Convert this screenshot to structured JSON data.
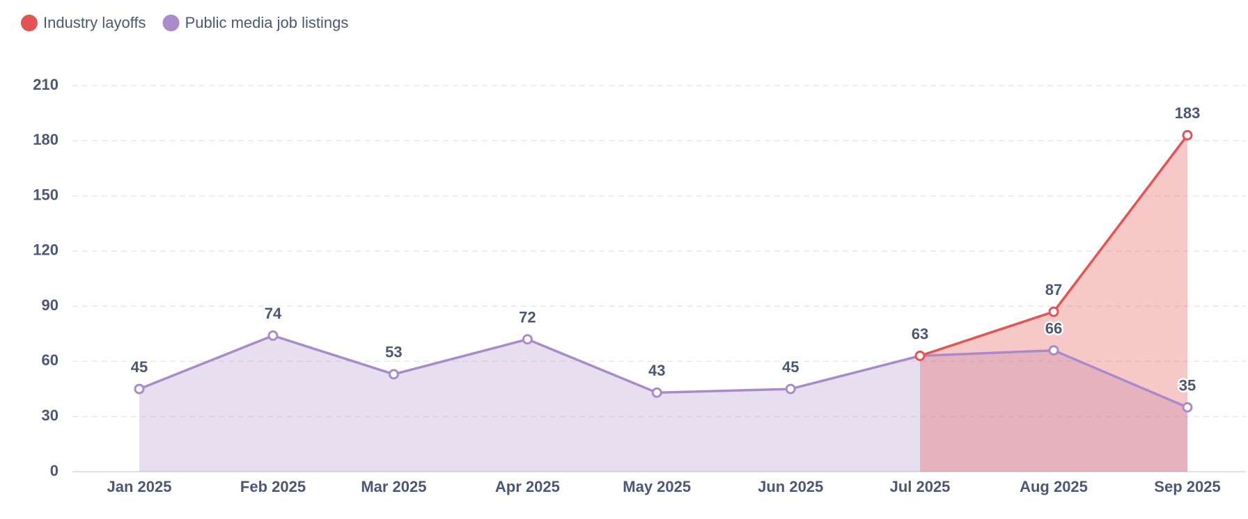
{
  "chart_data": {
    "type": "area",
    "categories": [
      "Jan 2025",
      "Feb 2025",
      "Mar 2025",
      "Apr 2025",
      "May 2025",
      "Jun 2025",
      "Jul 2025",
      "Aug 2025",
      "Sep 2025"
    ],
    "series": [
      {
        "name": "Industry layoffs",
        "color": "#e35454",
        "values": [
          null,
          null,
          null,
          null,
          null,
          null,
          63,
          87,
          183
        ]
      },
      {
        "name": "Public media job listings",
        "color": "#a98bc9",
        "values": [
          45,
          74,
          53,
          72,
          43,
          45,
          63,
          66,
          35
        ]
      }
    ],
    "ylim": [
      0,
      210
    ],
    "yticks": [
      0,
      30,
      60,
      90,
      120,
      150,
      180,
      210
    ],
    "grid": true,
    "legend": "top-left"
  }
}
